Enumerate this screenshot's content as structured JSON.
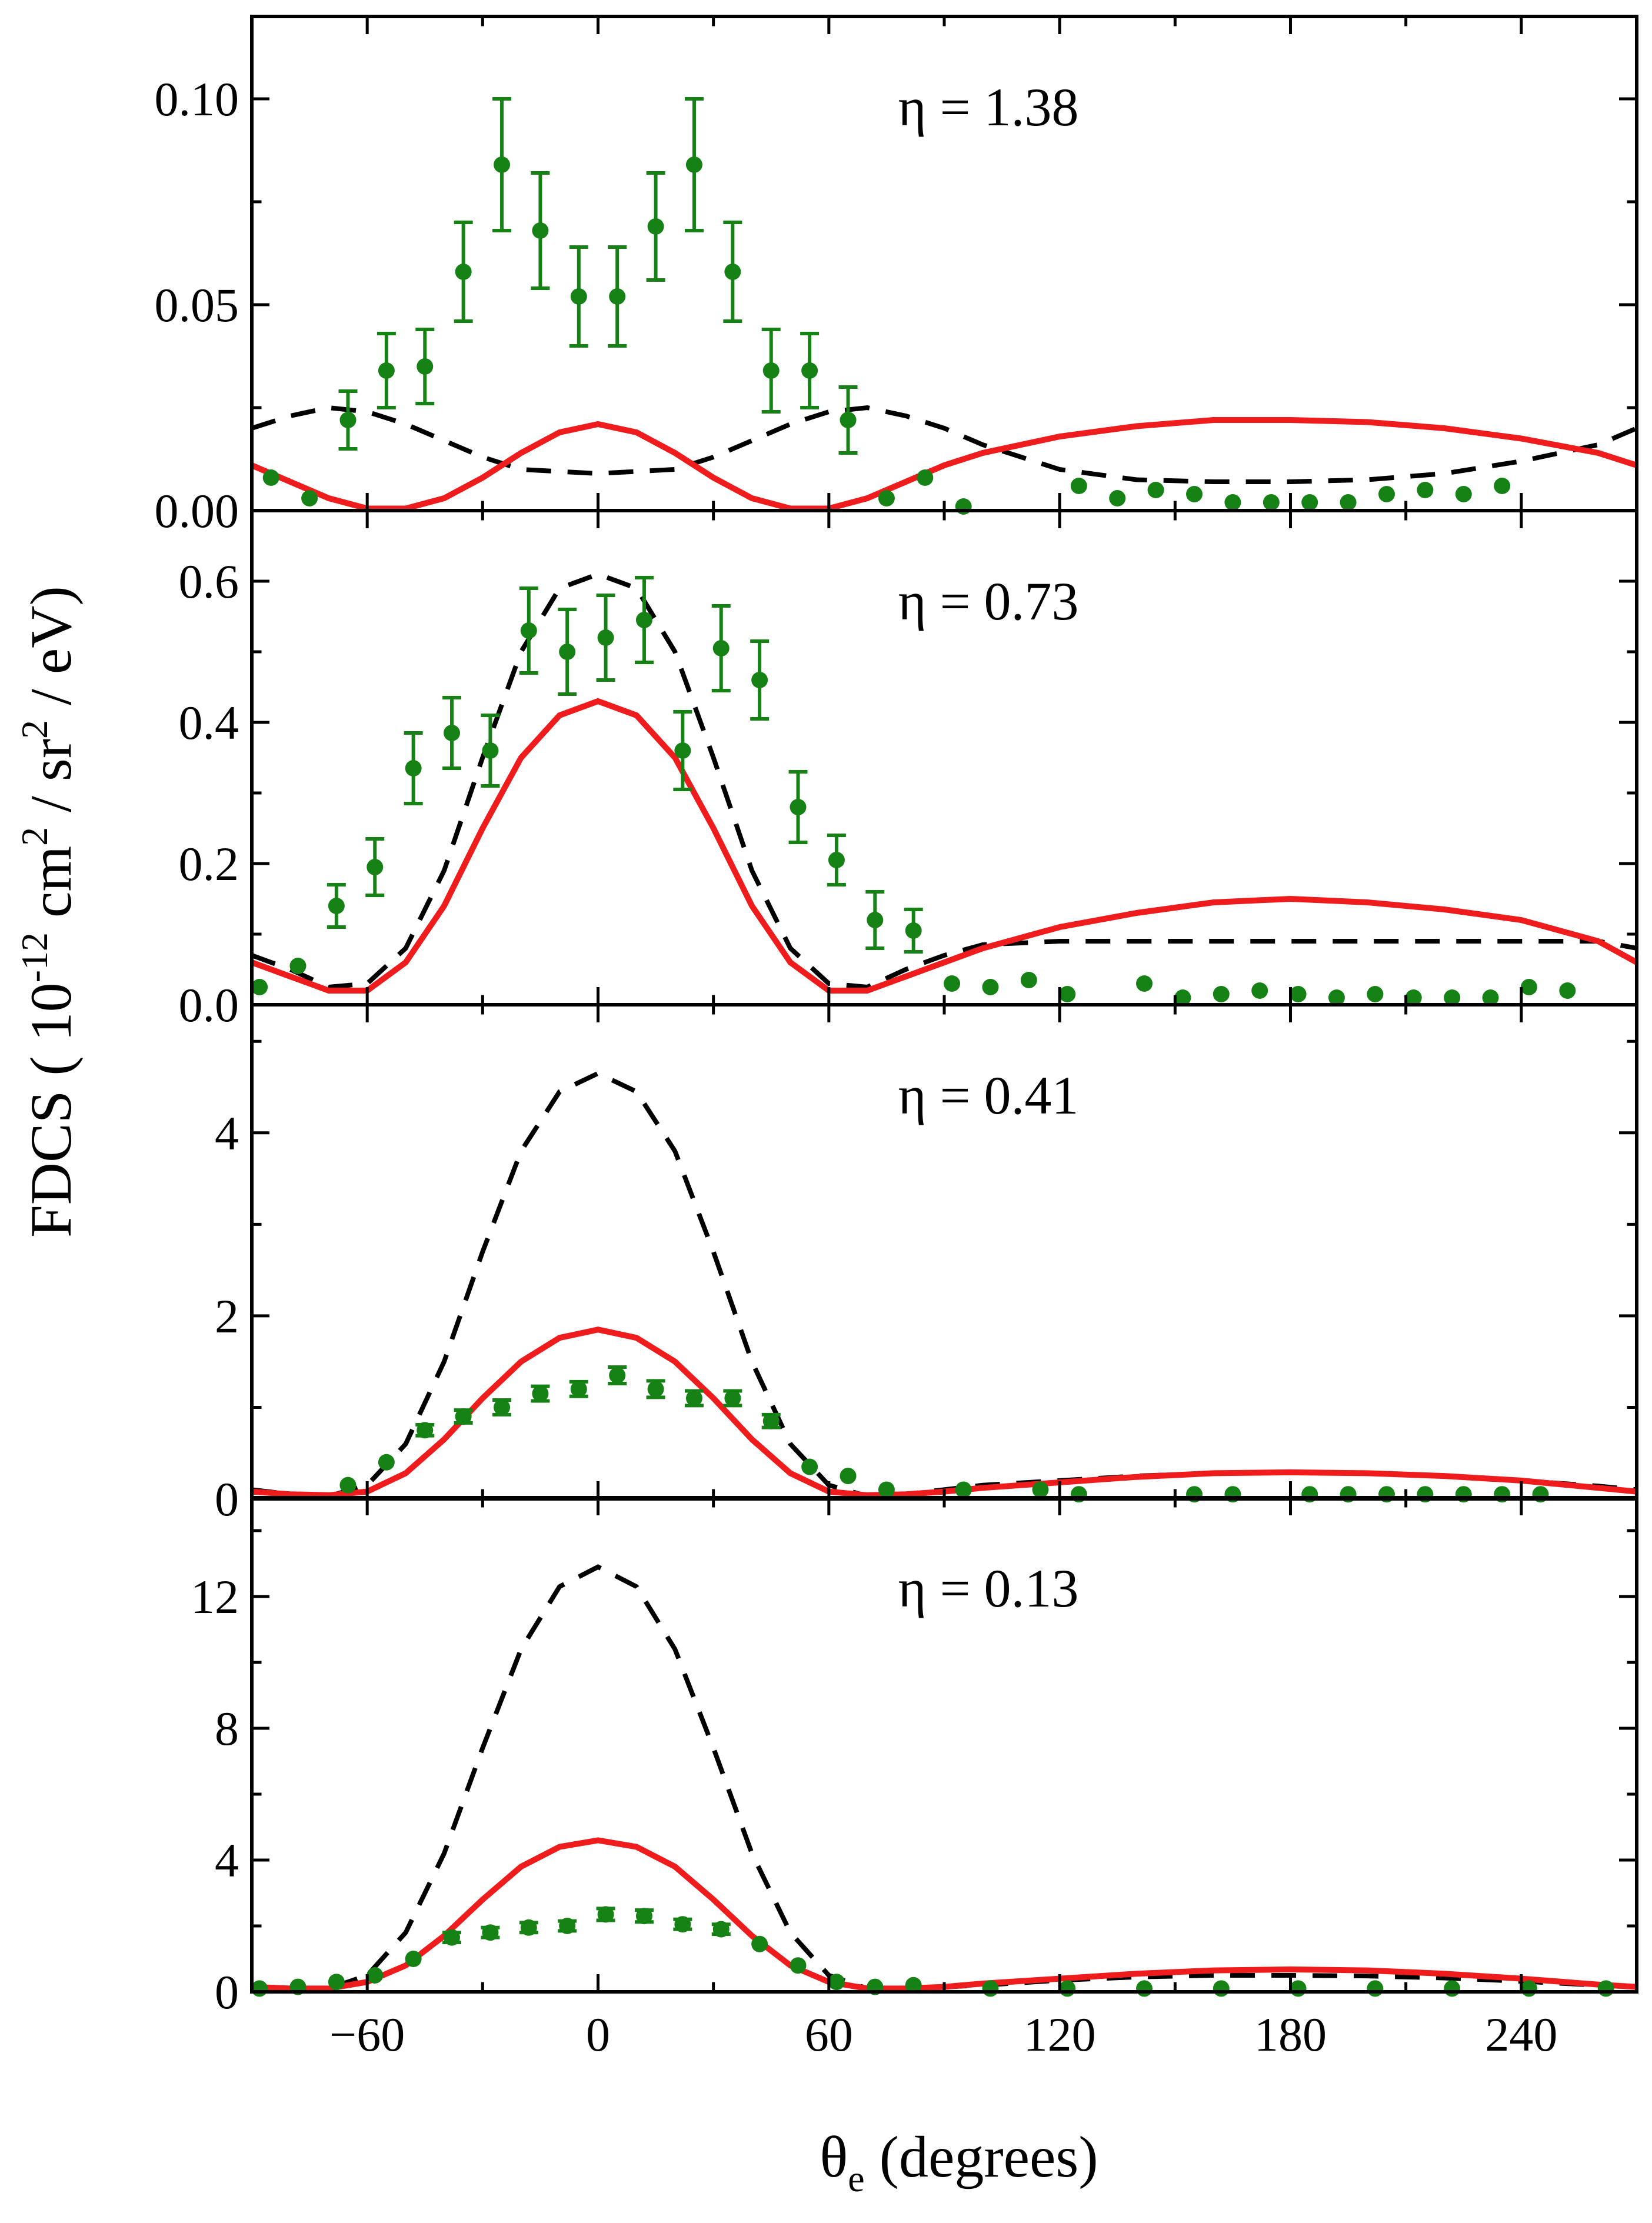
{
  "figure": {
    "ylabel": "FDCS ( 10",
    "ylabel_exp1": "-12",
    "ylabel_mid1": " cm",
    "ylabel_exp2": "2",
    "ylabel_mid2": " / sr",
    "ylabel_exp3": "2",
    "ylabel_end": " / eV)",
    "xlabel_symbol": "θ",
    "xlabel_sub": "e",
    "xlabel_rest": " (degrees)"
  },
  "colors": {
    "theory_solid": "#ee1c1c",
    "theory_dashed": "#000000",
    "experiment": "#168216",
    "axis": "#000000"
  },
  "chart_data": [
    {
      "type": "scatter",
      "label": "η = 1.38",
      "xlim": [
        -90,
        270
      ],
      "ylim": [
        0,
        0.12
      ],
      "xticks": [
        -60,
        0,
        60,
        120,
        180,
        240
      ],
      "xtick_labels": [
        "−60",
        "0",
        "60",
        "120",
        "180",
        "240"
      ],
      "yticks": [
        0,
        0.05,
        0.1
      ],
      "ytick_labels": [
        "0.00",
        "0.05",
        "0.10"
      ],
      "experiment": {
        "x": [
          -85,
          -75,
          -65,
          -55,
          -45,
          -35,
          -25,
          -15,
          -5,
          5,
          15,
          25,
          35,
          45,
          55,
          65,
          75,
          85,
          95,
          125,
          135,
          145,
          155,
          165,
          175,
          185,
          195,
          205,
          215,
          225,
          235
        ],
        "y": [
          0.008,
          0.003,
          0.022,
          0.034,
          0.035,
          0.058,
          0.084,
          0.068,
          0.052,
          0.052,
          0.069,
          0.084,
          0.058,
          0.034,
          0.034,
          0.022,
          0.003,
          0.008,
          0.001,
          0.006,
          0.003,
          0.005,
          0.004,
          0.002,
          0.002,
          0.002,
          0.002,
          0.004,
          0.005,
          0.004,
          0.006
        ],
        "err": [
          0,
          0,
          0.007,
          0.009,
          0.009,
          0.012,
          0.016,
          0.014,
          0.012,
          0.012,
          0.013,
          0.016,
          0.012,
          0.01,
          0.009,
          0.008,
          0,
          0,
          0,
          0,
          0,
          0,
          0,
          0,
          0,
          0,
          0,
          0,
          0,
          0,
          0
        ]
      },
      "theory_solid": {
        "x": [
          -90,
          -80,
          -70,
          -60,
          -50,
          -40,
          -30,
          -20,
          -10,
          0,
          10,
          20,
          30,
          40,
          50,
          60,
          70,
          80,
          90,
          100,
          120,
          140,
          160,
          180,
          200,
          220,
          240,
          260,
          270
        ],
        "y": [
          0.011,
          0.007,
          0.003,
          0.0005,
          0.0005,
          0.003,
          0.008,
          0.014,
          0.019,
          0.021,
          0.019,
          0.014,
          0.008,
          0.003,
          0.0005,
          0.0005,
          0.003,
          0.007,
          0.011,
          0.014,
          0.018,
          0.0205,
          0.022,
          0.022,
          0.0215,
          0.02,
          0.0175,
          0.014,
          0.011
        ]
      },
      "theory_dashed": {
        "x": [
          -90,
          -80,
          -70,
          -60,
          -50,
          -40,
          -30,
          -20,
          -10,
          0,
          10,
          20,
          30,
          40,
          50,
          60,
          70,
          80,
          90,
          100,
          120,
          140,
          160,
          180,
          200,
          220,
          240,
          260,
          270
        ],
        "y": [
          0.02,
          0.023,
          0.025,
          0.024,
          0.021,
          0.017,
          0.013,
          0.01,
          0.0095,
          0.009,
          0.0095,
          0.01,
          0.013,
          0.017,
          0.021,
          0.024,
          0.025,
          0.023,
          0.02,
          0.016,
          0.01,
          0.0075,
          0.007,
          0.007,
          0.0075,
          0.009,
          0.012,
          0.016,
          0.02
        ]
      }
    },
    {
      "type": "scatter",
      "label": "η = 0.73",
      "xlim": [
        -90,
        270
      ],
      "ylim": [
        0,
        0.7
      ],
      "xticks": [
        -60,
        0,
        60,
        120,
        180,
        240
      ],
      "xtick_labels": [
        "−60",
        "0",
        "60",
        "120",
        "180",
        "240"
      ],
      "yticks": [
        0,
        0.2,
        0.4,
        0.6
      ],
      "ytick_labels": [
        "0.0",
        "0.2",
        "0.4",
        "0.6"
      ],
      "experiment": {
        "x": [
          -88,
          -78,
          -68,
          -58,
          -48,
          -38,
          -28,
          -18,
          -8,
          2,
          12,
          22,
          32,
          42,
          52,
          62,
          72,
          82,
          92,
          102,
          112,
          122,
          142,
          152,
          162,
          172,
          182,
          192,
          202,
          212,
          222,
          232,
          242,
          252
        ],
        "y": [
          0.025,
          0.055,
          0.14,
          0.195,
          0.335,
          0.385,
          0.36,
          0.53,
          0.5,
          0.52,
          0.545,
          0.36,
          0.505,
          0.46,
          0.28,
          0.205,
          0.12,
          0.105,
          0.03,
          0.025,
          0.035,
          0.015,
          0.03,
          0.01,
          0.015,
          0.02,
          0.015,
          0.01,
          0.015,
          0.01,
          0.01,
          0.01,
          0.025,
          0.02
        ],
        "err": [
          0,
          0,
          0.03,
          0.04,
          0.05,
          0.05,
          0.05,
          0.06,
          0.06,
          0.06,
          0.06,
          0.055,
          0.06,
          0.055,
          0.05,
          0.035,
          0.04,
          0.03,
          0,
          0,
          0,
          0,
          0,
          0,
          0,
          0,
          0,
          0,
          0,
          0,
          0,
          0,
          0,
          0
        ]
      },
      "theory_solid": {
        "x": [
          -90,
          -80,
          -70,
          -60,
          -50,
          -40,
          -30,
          -20,
          -10,
          0,
          10,
          20,
          30,
          40,
          50,
          60,
          70,
          80,
          90,
          100,
          120,
          140,
          160,
          180,
          200,
          220,
          240,
          260,
          270
        ],
        "y": [
          0.06,
          0.04,
          0.02,
          0.02,
          0.06,
          0.14,
          0.25,
          0.35,
          0.41,
          0.43,
          0.41,
          0.35,
          0.25,
          0.14,
          0.06,
          0.02,
          0.02,
          0.04,
          0.06,
          0.08,
          0.11,
          0.13,
          0.145,
          0.15,
          0.145,
          0.135,
          0.12,
          0.09,
          0.06
        ]
      },
      "theory_dashed": {
        "x": [
          -90,
          -80,
          -70,
          -60,
          -50,
          -40,
          -30,
          -20,
          -10,
          0,
          10,
          20,
          30,
          40,
          50,
          60,
          70,
          80,
          90,
          100,
          120,
          140,
          160,
          180,
          200,
          220,
          240,
          260,
          270
        ],
        "y": [
          0.07,
          0.05,
          0.025,
          0.03,
          0.08,
          0.19,
          0.35,
          0.5,
          0.59,
          0.61,
          0.59,
          0.5,
          0.35,
          0.19,
          0.08,
          0.03,
          0.025,
          0.05,
          0.07,
          0.085,
          0.09,
          0.09,
          0.09,
          0.09,
          0.09,
          0.09,
          0.09,
          0.09,
          0.08
        ]
      }
    },
    {
      "type": "scatter",
      "label": "η = 0.41",
      "xlim": [
        -90,
        270
      ],
      "ylim": [
        0,
        5.4
      ],
      "xticks": [
        -60,
        0,
        60,
        120,
        180,
        240
      ],
      "xtick_labels": [
        "−60",
        "0",
        "60",
        "120",
        "180",
        "240"
      ],
      "yticks": [
        0,
        2,
        4
      ],
      "ytick_labels": [
        "0",
        "2",
        "4"
      ],
      "experiment": {
        "x": [
          -65,
          -55,
          -45,
          -35,
          -25,
          -15,
          -5,
          5,
          15,
          25,
          35,
          45,
          55,
          65,
          75,
          95,
          115,
          125,
          155,
          165,
          185,
          195,
          205,
          215,
          225,
          235,
          245
        ],
        "y": [
          0.15,
          0.4,
          0.75,
          0.9,
          1.0,
          1.15,
          1.2,
          1.35,
          1.2,
          1.1,
          1.1,
          0.85,
          0.35,
          0.25,
          0.1,
          0.1,
          0.1,
          0.05,
          0.05,
          0.05,
          0.05,
          0.05,
          0.05,
          0.05,
          0.05,
          0.05,
          0.05
        ],
        "err": [
          0,
          0,
          0.06,
          0.07,
          0.08,
          0.08,
          0.08,
          0.09,
          0.09,
          0.08,
          0.08,
          0.07,
          0,
          0,
          0,
          0,
          0,
          0,
          0,
          0,
          0,
          0,
          0,
          0,
          0,
          0,
          0
        ]
      },
      "theory_solid": {
        "x": [
          -90,
          -80,
          -70,
          -60,
          -50,
          -40,
          -30,
          -20,
          -10,
          0,
          10,
          20,
          30,
          40,
          50,
          60,
          70,
          80,
          90,
          100,
          120,
          140,
          160,
          180,
          200,
          220,
          240,
          260,
          270
        ],
        "y": [
          0.08,
          0.05,
          0.04,
          0.08,
          0.28,
          0.65,
          1.1,
          1.5,
          1.76,
          1.85,
          1.76,
          1.5,
          1.1,
          0.65,
          0.28,
          0.08,
          0.04,
          0.05,
          0.08,
          0.12,
          0.18,
          0.24,
          0.28,
          0.29,
          0.28,
          0.25,
          0.2,
          0.12,
          0.08
        ]
      },
      "theory_dashed": {
        "x": [
          -90,
          -80,
          -70,
          -60,
          -50,
          -40,
          -30,
          -20,
          -10,
          0,
          10,
          20,
          30,
          40,
          50,
          60,
          70,
          80,
          90,
          100,
          120,
          140,
          160,
          180,
          200,
          220,
          240,
          260,
          270
        ],
        "y": [
          0.1,
          0.05,
          0.03,
          0.15,
          0.6,
          1.5,
          2.7,
          3.8,
          4.45,
          4.65,
          4.45,
          3.8,
          2.7,
          1.5,
          0.6,
          0.15,
          0.03,
          0.05,
          0.1,
          0.15,
          0.2,
          0.25,
          0.28,
          0.29,
          0.28,
          0.25,
          0.2,
          0.14,
          0.1
        ]
      }
    },
    {
      "type": "scatter",
      "label": "η = 0.13",
      "xlim": [
        -90,
        270
      ],
      "ylim": [
        0,
        15
      ],
      "xticks": [
        -60,
        0,
        60,
        120,
        180,
        240
      ],
      "xtick_labels": [
        "−60",
        "0",
        "60",
        "120",
        "180",
        "240"
      ],
      "yticks": [
        0,
        4,
        8,
        12
      ],
      "ytick_labels": [
        "0",
        "4",
        "8",
        "12"
      ],
      "experiment": {
        "x": [
          -88,
          -78,
          -68,
          -58,
          -48,
          -38,
          -28,
          -18,
          -8,
          2,
          12,
          22,
          32,
          42,
          52,
          62,
          72,
          82,
          102,
          122,
          142,
          162,
          182,
          202,
          222,
          242,
          262
        ],
        "y": [
          0.1,
          0.15,
          0.3,
          0.5,
          1.0,
          1.65,
          1.8,
          1.95,
          2.0,
          2.35,
          2.3,
          2.05,
          1.9,
          1.45,
          0.8,
          0.3,
          0.15,
          0.2,
          0.1,
          0.1,
          0.1,
          0.1,
          0.1,
          0.1,
          0.1,
          0.1,
          0.1
        ],
        "err": [
          0,
          0,
          0,
          0,
          0,
          0.15,
          0.15,
          0.15,
          0.15,
          0.18,
          0.18,
          0.15,
          0.15,
          0,
          0,
          0,
          0,
          0,
          0,
          0,
          0,
          0,
          0,
          0,
          0,
          0,
          0
        ]
      },
      "theory_solid": {
        "x": [
          -90,
          -80,
          -70,
          -60,
          -50,
          -40,
          -30,
          -20,
          -10,
          0,
          10,
          20,
          30,
          40,
          50,
          60,
          70,
          80,
          90,
          100,
          120,
          140,
          160,
          180,
          200,
          220,
          240,
          260,
          270
        ],
        "y": [
          0.15,
          0.1,
          0.1,
          0.3,
          0.8,
          1.7,
          2.8,
          3.8,
          4.4,
          4.6,
          4.4,
          3.8,
          2.8,
          1.7,
          0.8,
          0.3,
          0.1,
          0.1,
          0.15,
          0.25,
          0.4,
          0.55,
          0.65,
          0.68,
          0.65,
          0.55,
          0.4,
          0.22,
          0.15
        ]
      },
      "theory_dashed": {
        "x": [
          -90,
          -80,
          -70,
          -60,
          -50,
          -40,
          -30,
          -20,
          -10,
          0,
          10,
          20,
          30,
          40,
          50,
          60,
          70,
          80,
          90,
          100,
          120,
          140,
          160,
          180,
          200,
          220,
          240,
          260,
          270
        ],
        "y": [
          0.15,
          0.1,
          0.1,
          0.5,
          1.8,
          4.2,
          7.4,
          10.4,
          12.3,
          12.9,
          12.3,
          10.4,
          7.4,
          4.2,
          1.8,
          0.5,
          0.1,
          0.1,
          0.15,
          0.2,
          0.35,
          0.45,
          0.5,
          0.5,
          0.48,
          0.42,
          0.32,
          0.2,
          0.15
        ]
      }
    }
  ]
}
